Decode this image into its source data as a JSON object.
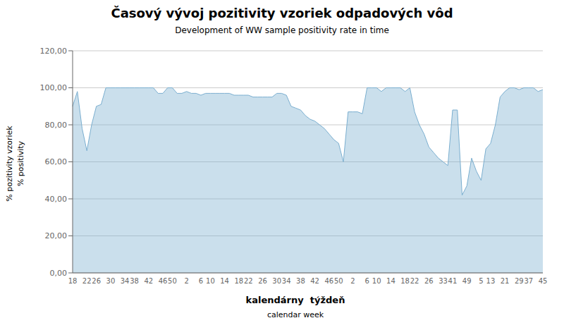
{
  "chart_data": {
    "type": "area",
    "title": "Časový vývoj pozitivity vzoriek odpadových vôd",
    "subtitle": "Development of WW sample positivity rate in time",
    "xlabel": [
      "kalendárny  týždeň",
      "calendar week"
    ],
    "ylabel": [
      "% pozitivity vzoriek",
      "% positivity"
    ],
    "color": "#7aaecf",
    "grid": true,
    "categories": [
      "18",
      null,
      null,
      "22",
      null,
      "26",
      null,
      null,
      "30",
      null,
      null,
      "34",
      null,
      "38",
      null,
      null,
      "42",
      null,
      null,
      "46",
      null,
      "50",
      null,
      null,
      "2",
      null,
      null,
      "6",
      null,
      "10",
      null,
      null,
      "14",
      null,
      null,
      "18",
      null,
      "22",
      null,
      null,
      "26",
      null,
      null,
      "30",
      null,
      "34",
      null,
      null,
      "38",
      null,
      null,
      "42",
      null,
      null,
      "46",
      null,
      "50",
      null,
      null,
      "2",
      null,
      null,
      "6",
      null,
      "10",
      null,
      null,
      "14",
      null,
      null,
      "18",
      null,
      "22",
      null,
      null,
      "26",
      null,
      null,
      "33",
      null,
      "41",
      null,
      null,
      "49",
      null,
      null,
      "5",
      null,
      "13",
      null,
      null,
      "21",
      null,
      null,
      "29",
      null,
      "37",
      null,
      null,
      "45"
    ],
    "values": [
      90,
      98,
      78,
      66,
      80,
      90,
      91,
      100,
      100,
      100,
      100,
      100,
      100,
      100,
      100,
      100,
      100,
      100,
      97,
      97,
      100,
      100,
      97,
      97,
      98,
      97,
      97,
      96,
      97,
      97,
      97,
      97,
      97,
      97,
      96,
      96,
      96,
      96,
      95,
      95,
      95,
      95,
      95,
      97,
      97,
      96,
      90,
      89,
      88,
      85,
      83,
      82,
      80,
      78,
      75,
      72,
      70,
      60,
      87,
      87,
      87,
      86,
      100,
      100,
      100,
      98,
      100,
      100,
      100,
      100,
      98,
      100,
      87,
      80,
      75,
      68,
      65,
      62,
      60,
      58,
      88,
      88,
      42,
      47,
      62,
      55,
      50,
      67,
      70,
      80,
      95,
      98,
      100,
      100,
      99,
      100,
      100,
      100,
      98,
      99
    ],
    "ylim": [
      0,
      120
    ],
    "yticks": [
      {
        "value": 0,
        "label": "0,00"
      },
      {
        "value": 20,
        "label": "20,00"
      },
      {
        "value": 40,
        "label": "40,00"
      },
      {
        "value": 60,
        "label": "60,00"
      },
      {
        "value": 80,
        "label": "80,00"
      },
      {
        "value": 100,
        "label": "100,00"
      },
      {
        "value": 120,
        "label": "120,00"
      }
    ]
  }
}
